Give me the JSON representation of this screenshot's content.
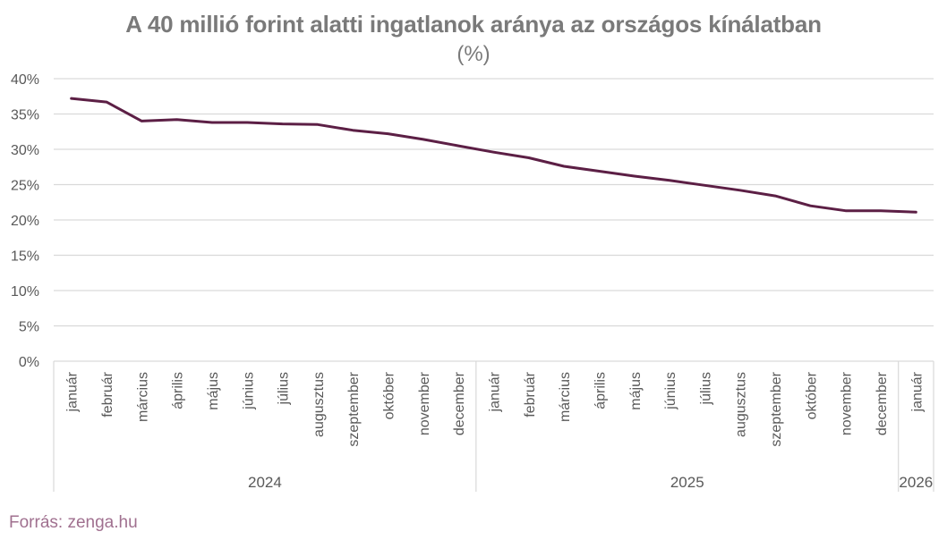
{
  "chart_data": {
    "type": "line",
    "title": "A 40 millió forint alatti ingatlanok aránya az országos kínálatban",
    "subtitle": "(%)",
    "xlabel": "",
    "ylabel": "",
    "ylim": [
      0,
      40
    ],
    "yticks": [
      "0%",
      "5%",
      "10%",
      "15%",
      "20%",
      "25%",
      "30%",
      "35%",
      "40%"
    ],
    "grid": true,
    "legend": null,
    "categories": [
      "január",
      "február",
      "március",
      "április",
      "május",
      "június",
      "július",
      "augusztus",
      "szeptember",
      "október",
      "november",
      "december",
      "január",
      "február",
      "március",
      "április",
      "május",
      "június",
      "július",
      "augusztus",
      "szeptember",
      "október",
      "november",
      "december",
      "január"
    ],
    "year_groups": [
      {
        "label": "2024",
        "count": 12
      },
      {
        "label": "2025",
        "count": 12
      },
      {
        "label": "2026",
        "count": 1
      }
    ],
    "series": [
      {
        "name": "A 40 millió forint alatti ingatlanok aránya",
        "color": "#5c1f45",
        "values": [
          37.2,
          36.7,
          34.0,
          34.2,
          33.8,
          33.8,
          33.6,
          33.5,
          32.7,
          32.2,
          31.4,
          30.5,
          29.6,
          28.8,
          27.6,
          26.9,
          26.2,
          25.6,
          24.9,
          24.2,
          23.4,
          22.0,
          21.3,
          21.3,
          21.1
        ]
      }
    ]
  },
  "source": "Forrás: zenga.hu",
  "colors": {
    "line": "#5c1f45",
    "title": "#7a7a7a",
    "axis_text": "#595959",
    "grid": "#d9d9d9",
    "source": "#a0708f"
  }
}
